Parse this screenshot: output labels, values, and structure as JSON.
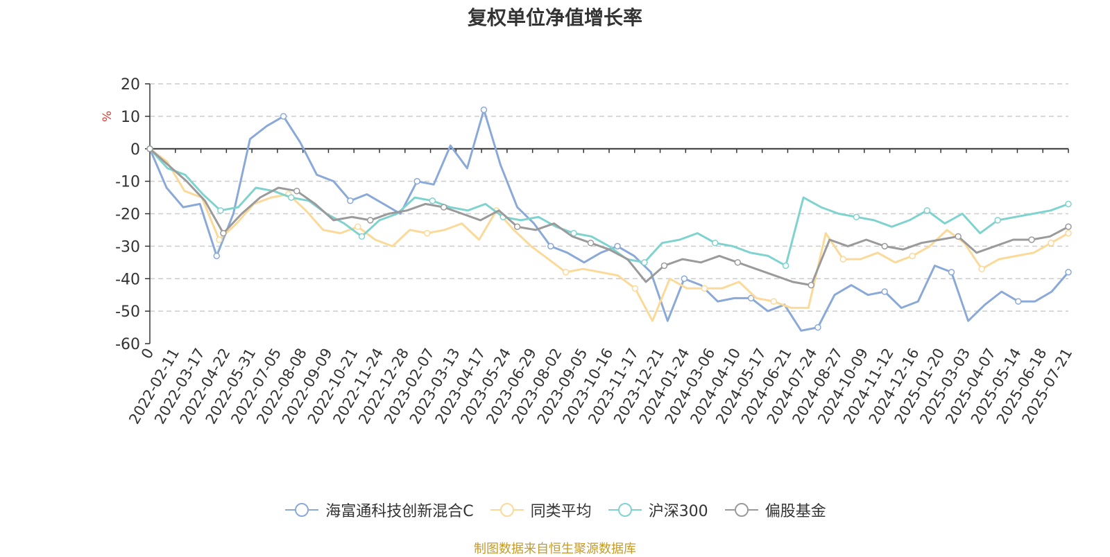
{
  "page": {
    "title": "复权单位净值增长率",
    "source": "制图数据来自恒生聚源数据库"
  },
  "colors": {
    "fund": "#8aa9d8",
    "peer_avg": "#fbd999",
    "csi300": "#7fd3cf",
    "equity_funds": "#9a9a9a",
    "axis_unit": "#e03c31",
    "grid": "#cccccc",
    "source": "#c49a2c"
  },
  "chart_data": {
    "type": "line",
    "title": "复权单位净值增长率",
    "ylabel": "%",
    "ylim": [
      -60,
      20
    ],
    "yticks": [
      20,
      10,
      0,
      -10,
      -20,
      -30,
      -40,
      -50,
      -60
    ],
    "grid": true,
    "legend_position": "bottom",
    "x_labels": [
      "0",
      "2022-02-11",
      "2022-03-17",
      "2022-04-22",
      "2022-05-31",
      "2022-07-05",
      "2022-08-08",
      "2022-09-09",
      "2022-10-21",
      "2022-11-24",
      "2022-12-28",
      "2023-02-07",
      "2023-03-13",
      "2023-04-17",
      "2023-05-24",
      "2023-06-29",
      "2023-08-02",
      "2023-09-05",
      "2023-10-16",
      "2023-11-17",
      "2023-12-21",
      "2024-01-24",
      "2024-03-06",
      "2024-04-10",
      "2024-05-17",
      "2024-06-21",
      "2024-07-24",
      "2024-08-27",
      "2024-10-09",
      "2024-11-12",
      "2024-12-16",
      "2025-01-20",
      "2025-03-03",
      "2025-04-07",
      "2025-05-14",
      "2025-06-18",
      "2025-07-21"
    ],
    "series": [
      {
        "name": "海富通科技创新混合C",
        "color": "#8aa9d8",
        "values": [
          0,
          -12,
          -18,
          -17,
          -33,
          -20,
          3,
          7,
          10,
          2,
          -8,
          -10,
          -16,
          -14,
          -17,
          -20,
          -10,
          -11,
          1,
          -6,
          12,
          -5,
          -18,
          -23,
          -30,
          -32,
          -35,
          -32,
          -30,
          -33,
          -38,
          -53,
          -40,
          -42,
          -47,
          -46,
          -46,
          -50,
          -48,
          -56,
          -55,
          -45,
          -42,
          -45,
          -44,
          -49,
          -47,
          -36,
          -38,
          -53,
          -48,
          -44,
          -47,
          -47,
          -44,
          -38
        ]
      },
      {
        "name": "同类平均",
        "color": "#fbd999",
        "values": [
          0,
          -4,
          -13,
          -15,
          -28,
          -23,
          -17,
          -15,
          -14,
          -19,
          -25,
          -26,
          -24,
          -28,
          -30,
          -25,
          -26,
          -25,
          -23,
          -28,
          -19,
          -25,
          -30,
          -34,
          -38,
          -37,
          -38,
          -39,
          -43,
          -53,
          -40,
          -43,
          -43,
          -43,
          -41,
          -46,
          -47,
          -49,
          -49,
          -26,
          -34,
          -34,
          -32,
          -35,
          -33,
          -30,
          -25,
          -29,
          -37,
          -34,
          -33,
          -32,
          -29,
          -26
        ]
      },
      {
        "name": "沪深300",
        "color": "#7fd3cf",
        "values": [
          0,
          -6,
          -8,
          -14,
          -19,
          -18,
          -12,
          -13,
          -15,
          -16,
          -20,
          -23,
          -27,
          -22,
          -20,
          -15,
          -16,
          -18,
          -19,
          -17,
          -21,
          -22,
          -21,
          -24,
          -26,
          -27,
          -30,
          -34,
          -35,
          -29,
          -28,
          -26,
          -29,
          -30,
          -32,
          -33,
          -36,
          -15,
          -18,
          -20,
          -21,
          -22,
          -24,
          -22,
          -19,
          -23,
          -20,
          -26,
          -22,
          -21,
          -20,
          -19,
          -17
        ]
      },
      {
        "name": "偏股基金",
        "color": "#9a9a9a",
        "values": [
          0,
          -5,
          -10,
          -16,
          -26,
          -20,
          -15,
          -12,
          -13,
          -17,
          -22,
          -21,
          -22,
          -20,
          -19,
          -17,
          -18,
          -20,
          -22,
          -19,
          -24,
          -25,
          -23,
          -27,
          -29,
          -31,
          -34,
          -41,
          -36,
          -34,
          -35,
          -33,
          -35,
          -37,
          -39,
          -41,
          -42,
          -28,
          -30,
          -28,
          -30,
          -31,
          -29,
          -28,
          -27,
          -32,
          -30,
          -28,
          -28,
          -27,
          -24
        ]
      }
    ]
  }
}
